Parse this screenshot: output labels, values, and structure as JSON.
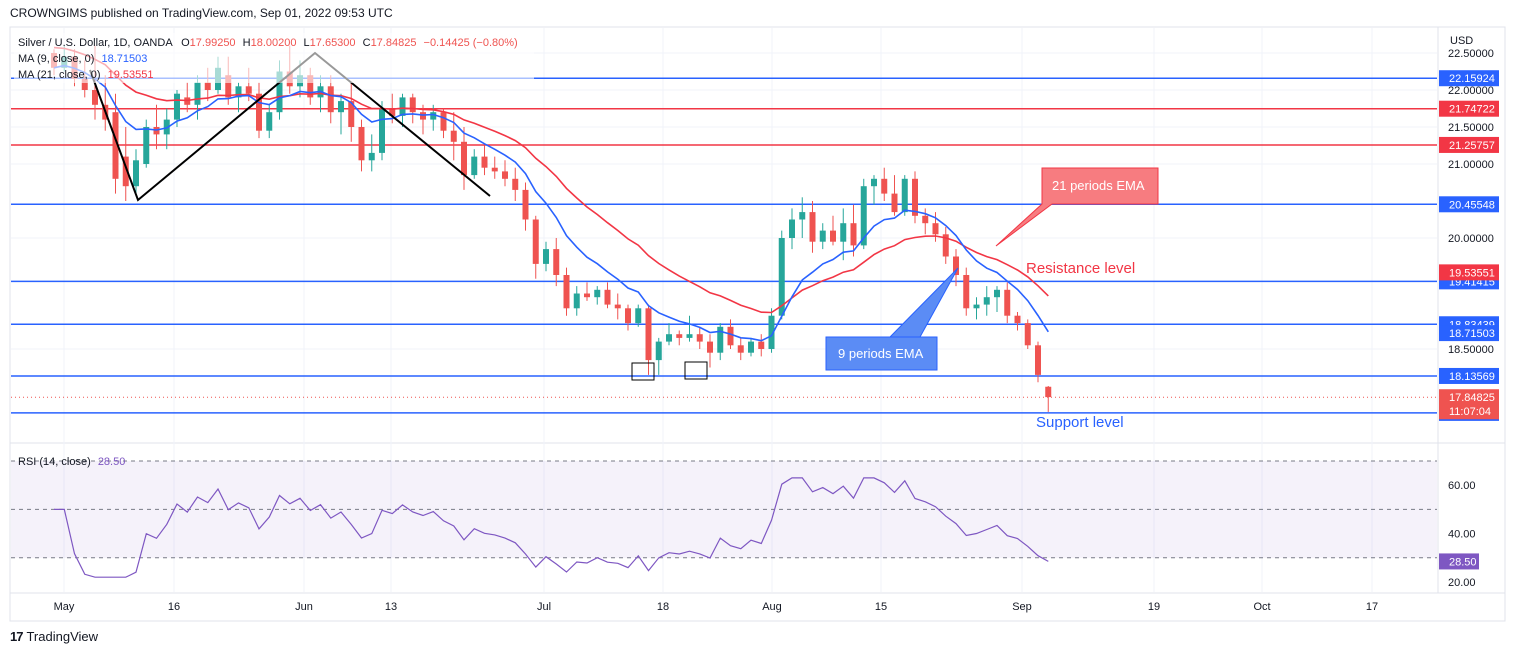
{
  "header": {
    "publisher": "CROWNGIMS published on TradingView.com, Sep 01, 2022 09:53 UTC"
  },
  "footer": {
    "brand": "TradingView",
    "brand_mark": "17"
  },
  "legend": {
    "symbol": "Silver / U.S. Dollar, 1D, OANDA",
    "ohlc": [
      {
        "key": "O",
        "value": "17.99250"
      },
      {
        "key": "H",
        "value": "18.00200"
      },
      {
        "key": "L",
        "value": "17.65300"
      },
      {
        "key": "C",
        "value": "17.84825"
      }
    ],
    "change": "−0.14425 (−0.80%)",
    "ma9_label": "MA (9, close, 0)",
    "ma9_value": "18.71503",
    "ma21_label": "MA (21, close, 0)",
    "ma21_value": "19.53551",
    "rsi_label": "RSI (14, close)",
    "rsi_value": "28.50"
  },
  "colors": {
    "up": "#26a69a",
    "down": "#ef5350",
    "ma9": "#2962ff",
    "ma21": "#f23645",
    "rsi": "#7e57c2",
    "blue_line": "#2962ff",
    "red_line": "#f23645"
  },
  "chart_data": {
    "type": "candlestick",
    "currency": "USD",
    "price_axis_ticks": [
      "22.50000",
      "22.00000",
      "21.50000",
      "21.00000",
      "20.00000",
      "18.50000"
    ],
    "time_axis_labels": [
      "May",
      "16",
      "Jun",
      "13",
      "Jul",
      "18",
      "Aug",
      "15",
      "Sep",
      "19",
      "Oct",
      "17"
    ],
    "horizontal_levels": [
      {
        "value": 22.15924,
        "label": "22.15924",
        "color": "#2962ff"
      },
      {
        "value": 21.74722,
        "label": "21.74722",
        "color": "#f23645"
      },
      {
        "value": 21.25757,
        "label": "21.25757",
        "color": "#f23645"
      },
      {
        "value": 20.45548,
        "label": "20.45548",
        "color": "#2962ff"
      },
      {
        "value": 19.41415,
        "label": "19.41415",
        "color": "#2962ff"
      },
      {
        "value": 18.83439,
        "label": "18.83439",
        "color": "#2962ff"
      },
      {
        "value": 18.13569,
        "label": "18.13569",
        "color": "#2962ff"
      },
      {
        "value": 17.63662,
        "label": "17.63662",
        "color": "#2962ff"
      }
    ],
    "price_badges": [
      {
        "value": 19.53551,
        "label": "19.53551",
        "color": "#f23645"
      },
      {
        "value": 18.71503,
        "label": "18.71503",
        "color": "#2962ff"
      },
      {
        "value": 17.84825,
        "label": "17.84825",
        "color": "#ef5350"
      }
    ],
    "countdown": "11:07:04",
    "annotations": {
      "ema21_callout": "21 periods EMA",
      "ema9_callout": "9 periods EMA",
      "resistance": "Resistance level",
      "support": "Support level"
    },
    "candles": [
      [
        22.5,
        22.55,
        22.2,
        22.3
      ],
      [
        22.3,
        22.6,
        22.25,
        22.45
      ],
      [
        22.45,
        22.55,
        22.05,
        22.15
      ],
      [
        22.15,
        22.4,
        21.9,
        22.0
      ],
      [
        22.0,
        22.6,
        21.6,
        21.8
      ],
      [
        21.8,
        22.2,
        21.45,
        21.6
      ],
      [
        21.7,
        21.95,
        20.6,
        20.8
      ],
      [
        21.1,
        21.5,
        20.5,
        20.7
      ],
      [
        20.7,
        21.2,
        20.6,
        21.05
      ],
      [
        21.0,
        21.6,
        20.95,
        21.5
      ],
      [
        21.5,
        21.8,
        21.2,
        21.4
      ],
      [
        21.4,
        21.75,
        21.2,
        21.6
      ],
      [
        21.6,
        22.0,
        21.5,
        21.95
      ],
      [
        21.9,
        22.1,
        21.7,
        21.8
      ],
      [
        21.8,
        22.2,
        21.6,
        22.1
      ],
      [
        22.1,
        22.3,
        21.85,
        22.0
      ],
      [
        22.0,
        22.45,
        21.95,
        22.3
      ],
      [
        22.2,
        22.45,
        21.8,
        21.9
      ],
      [
        21.9,
        22.1,
        21.7,
        22.05
      ],
      [
        22.05,
        22.3,
        21.85,
        21.95
      ],
      [
        21.95,
        22.1,
        21.35,
        21.45
      ],
      [
        21.45,
        21.8,
        21.35,
        21.7
      ],
      [
        21.7,
        22.4,
        21.6,
        22.25
      ],
      [
        22.25,
        22.6,
        21.95,
        22.05
      ],
      [
        22.05,
        22.4,
        21.9,
        22.2
      ],
      [
        22.2,
        22.3,
        21.8,
        21.9
      ],
      [
        21.9,
        22.2,
        21.7,
        22.05
      ],
      [
        22.05,
        22.2,
        21.55,
        21.7
      ],
      [
        21.7,
        21.95,
        21.4,
        21.85
      ],
      [
        21.85,
        22.1,
        21.3,
        21.5
      ],
      [
        21.5,
        21.6,
        20.9,
        21.05
      ],
      [
        21.05,
        21.4,
        20.9,
        21.15
      ],
      [
        21.15,
        21.85,
        21.05,
        21.75
      ],
      [
        21.75,
        21.95,
        21.55,
        21.65
      ],
      [
        21.65,
        21.95,
        21.5,
        21.9
      ],
      [
        21.9,
        21.95,
        21.55,
        21.7
      ],
      [
        21.7,
        21.8,
        21.4,
        21.6
      ],
      [
        21.6,
        21.8,
        21.45,
        21.7
      ],
      [
        21.7,
        21.75,
        21.35,
        21.45
      ],
      [
        21.45,
        21.7,
        21.05,
        21.3
      ],
      [
        21.3,
        21.5,
        20.65,
        20.85
      ],
      [
        20.85,
        21.2,
        20.8,
        21.1
      ],
      [
        21.1,
        21.25,
        20.85,
        20.95
      ],
      [
        20.95,
        21.1,
        20.8,
        20.9
      ],
      [
        20.9,
        21.05,
        20.7,
        20.8
      ],
      [
        20.8,
        20.95,
        20.5,
        20.65
      ],
      [
        20.65,
        20.75,
        20.1,
        20.25
      ],
      [
        20.25,
        20.3,
        19.45,
        19.65
      ],
      [
        19.65,
        19.95,
        19.55,
        19.85
      ],
      [
        19.85,
        20.0,
        19.35,
        19.5
      ],
      [
        19.5,
        19.6,
        18.95,
        19.05
      ],
      [
        19.05,
        19.35,
        18.95,
        19.25
      ],
      [
        19.25,
        19.4,
        19.15,
        19.2
      ],
      [
        19.2,
        19.35,
        19.1,
        19.3
      ],
      [
        19.3,
        19.4,
        19.05,
        19.1
      ],
      [
        19.1,
        19.25,
        18.9,
        19.05
      ],
      [
        19.05,
        19.1,
        18.75,
        18.85
      ],
      [
        18.85,
        19.1,
        18.8,
        19.05
      ],
      [
        19.05,
        19.1,
        18.15,
        18.35
      ],
      [
        18.35,
        18.65,
        18.15,
        18.6
      ],
      [
        18.6,
        18.85,
        18.55,
        18.7
      ],
      [
        18.7,
        18.75,
        18.55,
        18.65
      ],
      [
        18.65,
        18.95,
        18.6,
        18.7
      ],
      [
        18.7,
        18.8,
        18.5,
        18.6
      ],
      [
        18.6,
        18.7,
        18.25,
        18.45
      ],
      [
        18.45,
        18.85,
        18.35,
        18.8
      ],
      [
        18.8,
        18.9,
        18.5,
        18.55
      ],
      [
        18.55,
        18.65,
        18.35,
        18.45
      ],
      [
        18.45,
        18.65,
        18.4,
        18.6
      ],
      [
        18.6,
        18.7,
        18.4,
        18.5
      ],
      [
        18.5,
        19.05,
        18.45,
        18.95
      ],
      [
        18.95,
        20.1,
        18.9,
        20.0
      ],
      [
        20.0,
        20.4,
        19.85,
        20.25
      ],
      [
        20.25,
        20.55,
        20.0,
        20.35
      ],
      [
        20.35,
        20.5,
        19.8,
        19.95
      ],
      [
        19.95,
        20.2,
        19.85,
        20.1
      ],
      [
        20.1,
        20.3,
        19.9,
        19.95
      ],
      [
        19.95,
        20.4,
        19.7,
        20.2
      ],
      [
        20.2,
        20.45,
        19.75,
        19.9
      ],
      [
        19.9,
        20.8,
        19.85,
        20.7
      ],
      [
        20.7,
        20.85,
        20.45,
        20.8
      ],
      [
        20.8,
        20.95,
        20.5,
        20.6
      ],
      [
        20.6,
        20.85,
        20.3,
        20.35
      ],
      [
        20.35,
        20.85,
        20.3,
        20.8
      ],
      [
        20.8,
        20.9,
        20.2,
        20.3
      ],
      [
        20.3,
        20.4,
        20.05,
        20.2
      ],
      [
        20.2,
        20.35,
        19.95,
        20.05
      ],
      [
        20.05,
        20.15,
        19.65,
        19.75
      ],
      [
        19.75,
        19.85,
        19.35,
        19.5
      ],
      [
        19.5,
        19.6,
        18.95,
        19.05
      ],
      [
        19.05,
        19.2,
        18.9,
        19.1
      ],
      [
        19.1,
        19.35,
        18.95,
        19.2
      ],
      [
        19.2,
        19.35,
        19.0,
        19.3
      ],
      [
        19.3,
        19.4,
        18.85,
        18.95
      ],
      [
        18.95,
        19.0,
        18.75,
        18.85
      ],
      [
        18.85,
        18.9,
        18.5,
        18.55
      ],
      [
        18.55,
        18.6,
        18.05,
        18.15
      ],
      [
        17.99,
        18.0,
        17.65,
        17.85
      ]
    ],
    "rsi_axis_ticks": [
      "60.00",
      "40.00",
      "20.00"
    ],
    "rsi_badge": "28.50",
    "rsi_bands": {
      "upper": 70,
      "middle": 50,
      "lower": 30
    }
  }
}
